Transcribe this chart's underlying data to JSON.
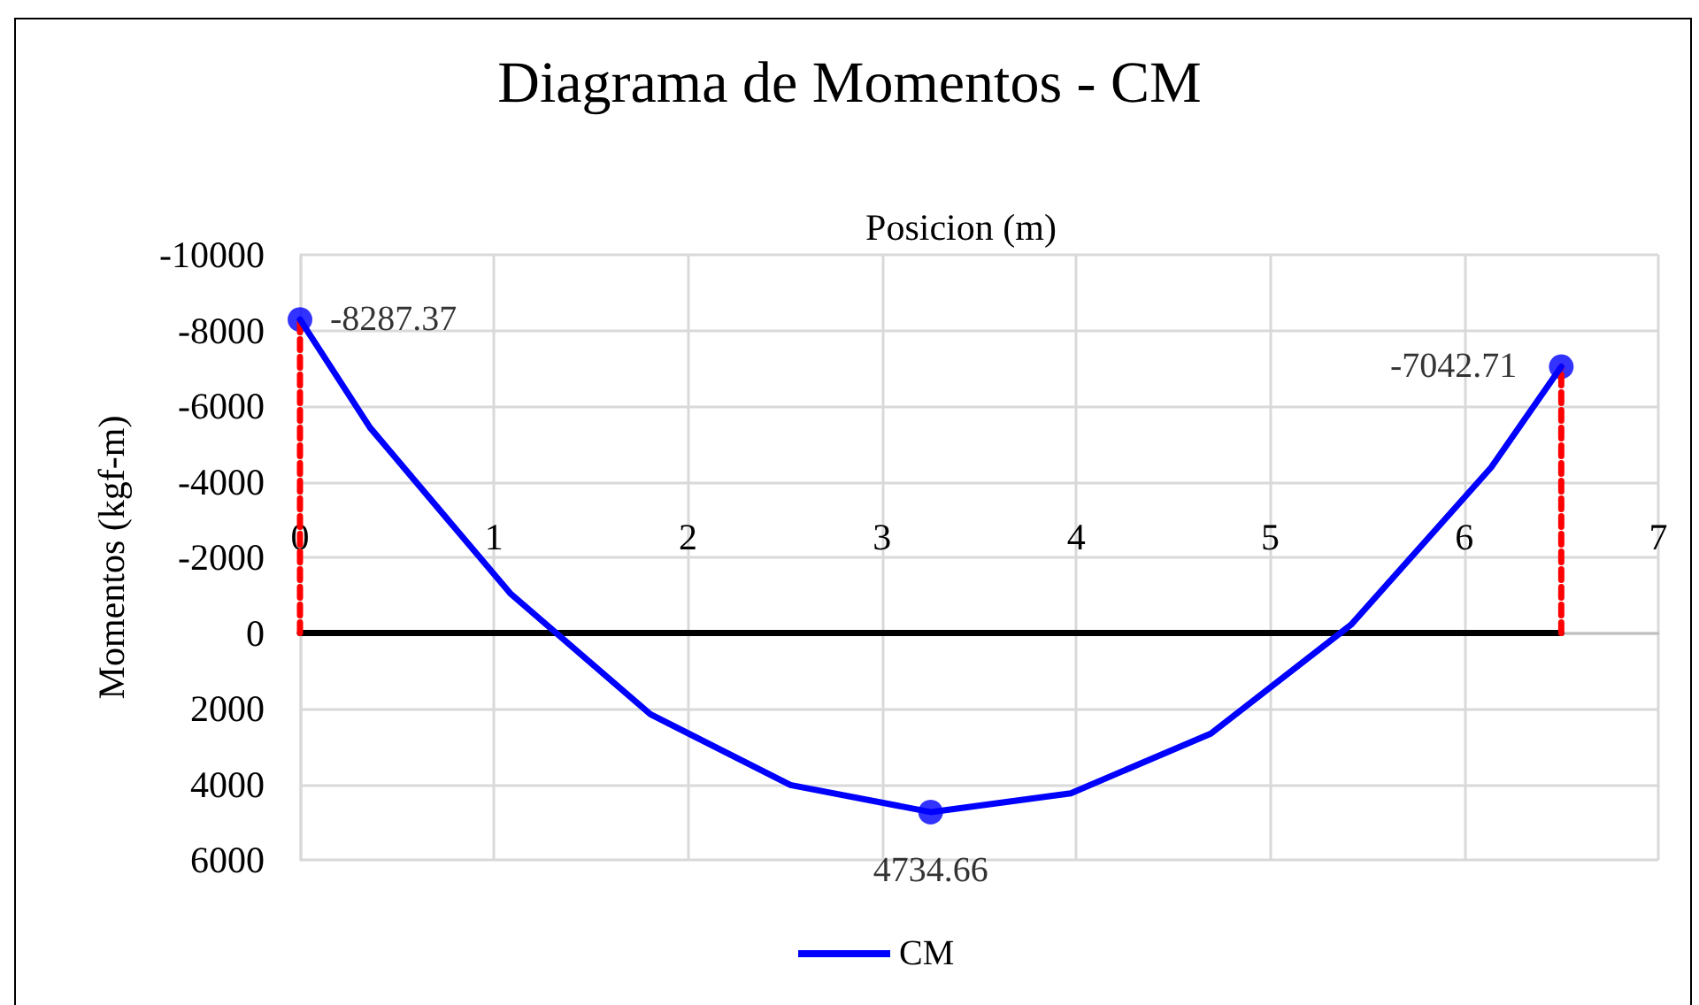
{
  "chart_data": {
    "type": "line",
    "title": "Diagrama de Momentos - CM",
    "xlabel": "Posicion (m)",
    "ylabel": "Momentos (kgf-m)",
    "xlim": [
      0,
      7
    ],
    "xticks": [
      0,
      1,
      2,
      3,
      4,
      5,
      6,
      7
    ],
    "ylim": [
      6000,
      -10000
    ],
    "yticks": [
      -10000,
      -8000,
      -6000,
      -4000,
      -2000,
      0,
      2000,
      4000,
      6000
    ],
    "grid": true,
    "legend": "bottom",
    "series": [
      {
        "type": "line",
        "color": "#000000",
        "x": [
          0,
          6.5
        ],
        "values": [
          0,
          0
        ],
        "marker": "none"
      },
      {
        "type": "line",
        "color": "#ff0000",
        "line_style": "dashed",
        "x": [
          0,
          0
        ],
        "values": [
          0,
          -8287.37
        ],
        "marker": "none"
      },
      {
        "type": "line",
        "color": "#ff0000",
        "line_style": "dashed",
        "x": [
          6.5,
          6.5
        ],
        "values": [
          0,
          -7042.71
        ],
        "marker": "none"
      },
      {
        "name": "CM",
        "color": "#0000ff",
        "marker": "none",
        "x": [
          0,
          0.361,
          1.083,
          1.806,
          2.528,
          3.25,
          3.972,
          4.694,
          5.417,
          6.139,
          6.5
        ],
        "values": [
          -8287.37,
          -5430,
          -1050,
          2150,
          4020,
          4734.66,
          4240,
          2660,
          -220,
          -4380,
          -7042.71
        ]
      },
      {
        "type": "scatter",
        "color": "#0000ff",
        "marker": "circle",
        "data_labels": true,
        "x": [
          0,
          3.25,
          6.5
        ],
        "values": [
          -8287.37,
          4734.66,
          -7042.71
        ]
      }
    ]
  }
}
